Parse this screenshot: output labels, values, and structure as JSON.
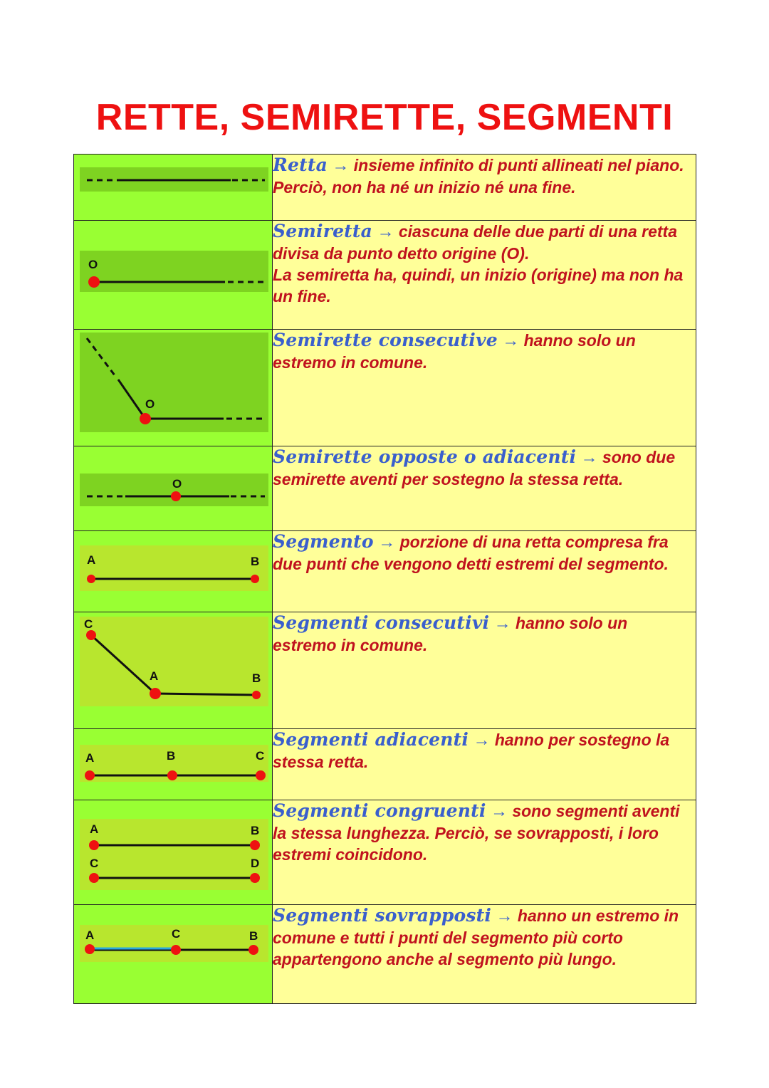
{
  "title": "RETTE, SEMIRETTE, SEGMENTI",
  "rows": [
    {
      "term": "Retta",
      "arrow": "→",
      "lines": [
        "insieme infinito di punti allineati nel piano. Perciò, non ha né un inizio né una fine."
      ],
      "labels": []
    },
    {
      "term": "Semiretta",
      "arrow": "→",
      "lines": [
        "ciascuna delle due parti di una retta divisa da punto detto origine (O).",
        "La semiretta ha, quindi, un inizio (origine) ma non ha un fine."
      ],
      "labels": [
        "O"
      ]
    },
    {
      "term": "Semirette consecutive",
      "arrow": "→",
      "lines": [
        "hanno solo un estremo in comune."
      ],
      "labels": [
        "O"
      ]
    },
    {
      "term": "Semirette opposte o adiacenti",
      "arrow": "→",
      "lines": [
        "sono due semirette aventi per sostegno la stessa retta."
      ],
      "labels": [
        "O"
      ]
    },
    {
      "term": "Segmento",
      "arrow": "→",
      "lines": [
        "porzione di una retta compresa fra due punti che vengono detti estremi del segmento."
      ],
      "labels": [
        "A",
        "B"
      ]
    },
    {
      "term": "Segmenti consecutivi",
      "arrow": "→",
      "lines": [
        "hanno solo un estremo in comune."
      ],
      "labels": [
        "C",
        "A",
        "B"
      ]
    },
    {
      "term": "Segmenti adiacenti",
      "arrow": "→",
      "lines": [
        "hanno per sostegno la stessa retta."
      ],
      "labels": [
        "A",
        "B",
        "C"
      ]
    },
    {
      "term": "Segmenti congruenti",
      "arrow": "→",
      "lines": [
        "sono segmenti aventi la stessa lunghezza. Perciò, se sovrapposti, i loro estremi coincidono."
      ],
      "labels": [
        "A",
        "B",
        "C",
        "D"
      ]
    },
    {
      "term": "Segmenti sovrapposti",
      "arrow": "→",
      "lines": [
        "hanno un estremo in comune e tutti i punti del segmento più corto appartengono anche al segmento più lungo."
      ],
      "labels": [
        "A",
        "C",
        "B"
      ]
    }
  ],
  "colors": {
    "title": "#ee1111",
    "term": "#3a5fcd",
    "desc": "#c0121e",
    "figure_bg": "#99ff33",
    "text_bg": "#ffff99",
    "point": "#ee1111"
  }
}
